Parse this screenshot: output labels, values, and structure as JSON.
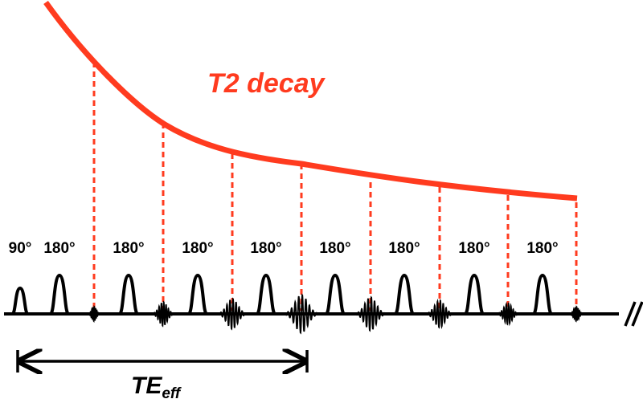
{
  "decay_label": "T2 decay",
  "te_label": {
    "main": "TE",
    "sub": "eff"
  },
  "pulse_labels": [
    "90°",
    "180°",
    "180°",
    "180°",
    "180°",
    "180°",
    "180°",
    "180°",
    "180°"
  ],
  "echo_count": 8,
  "effective_echo_index": 4,
  "colors": {
    "decay": "#ff3b1f",
    "waveform": "#000000",
    "guide": "#ff3b1f"
  }
}
